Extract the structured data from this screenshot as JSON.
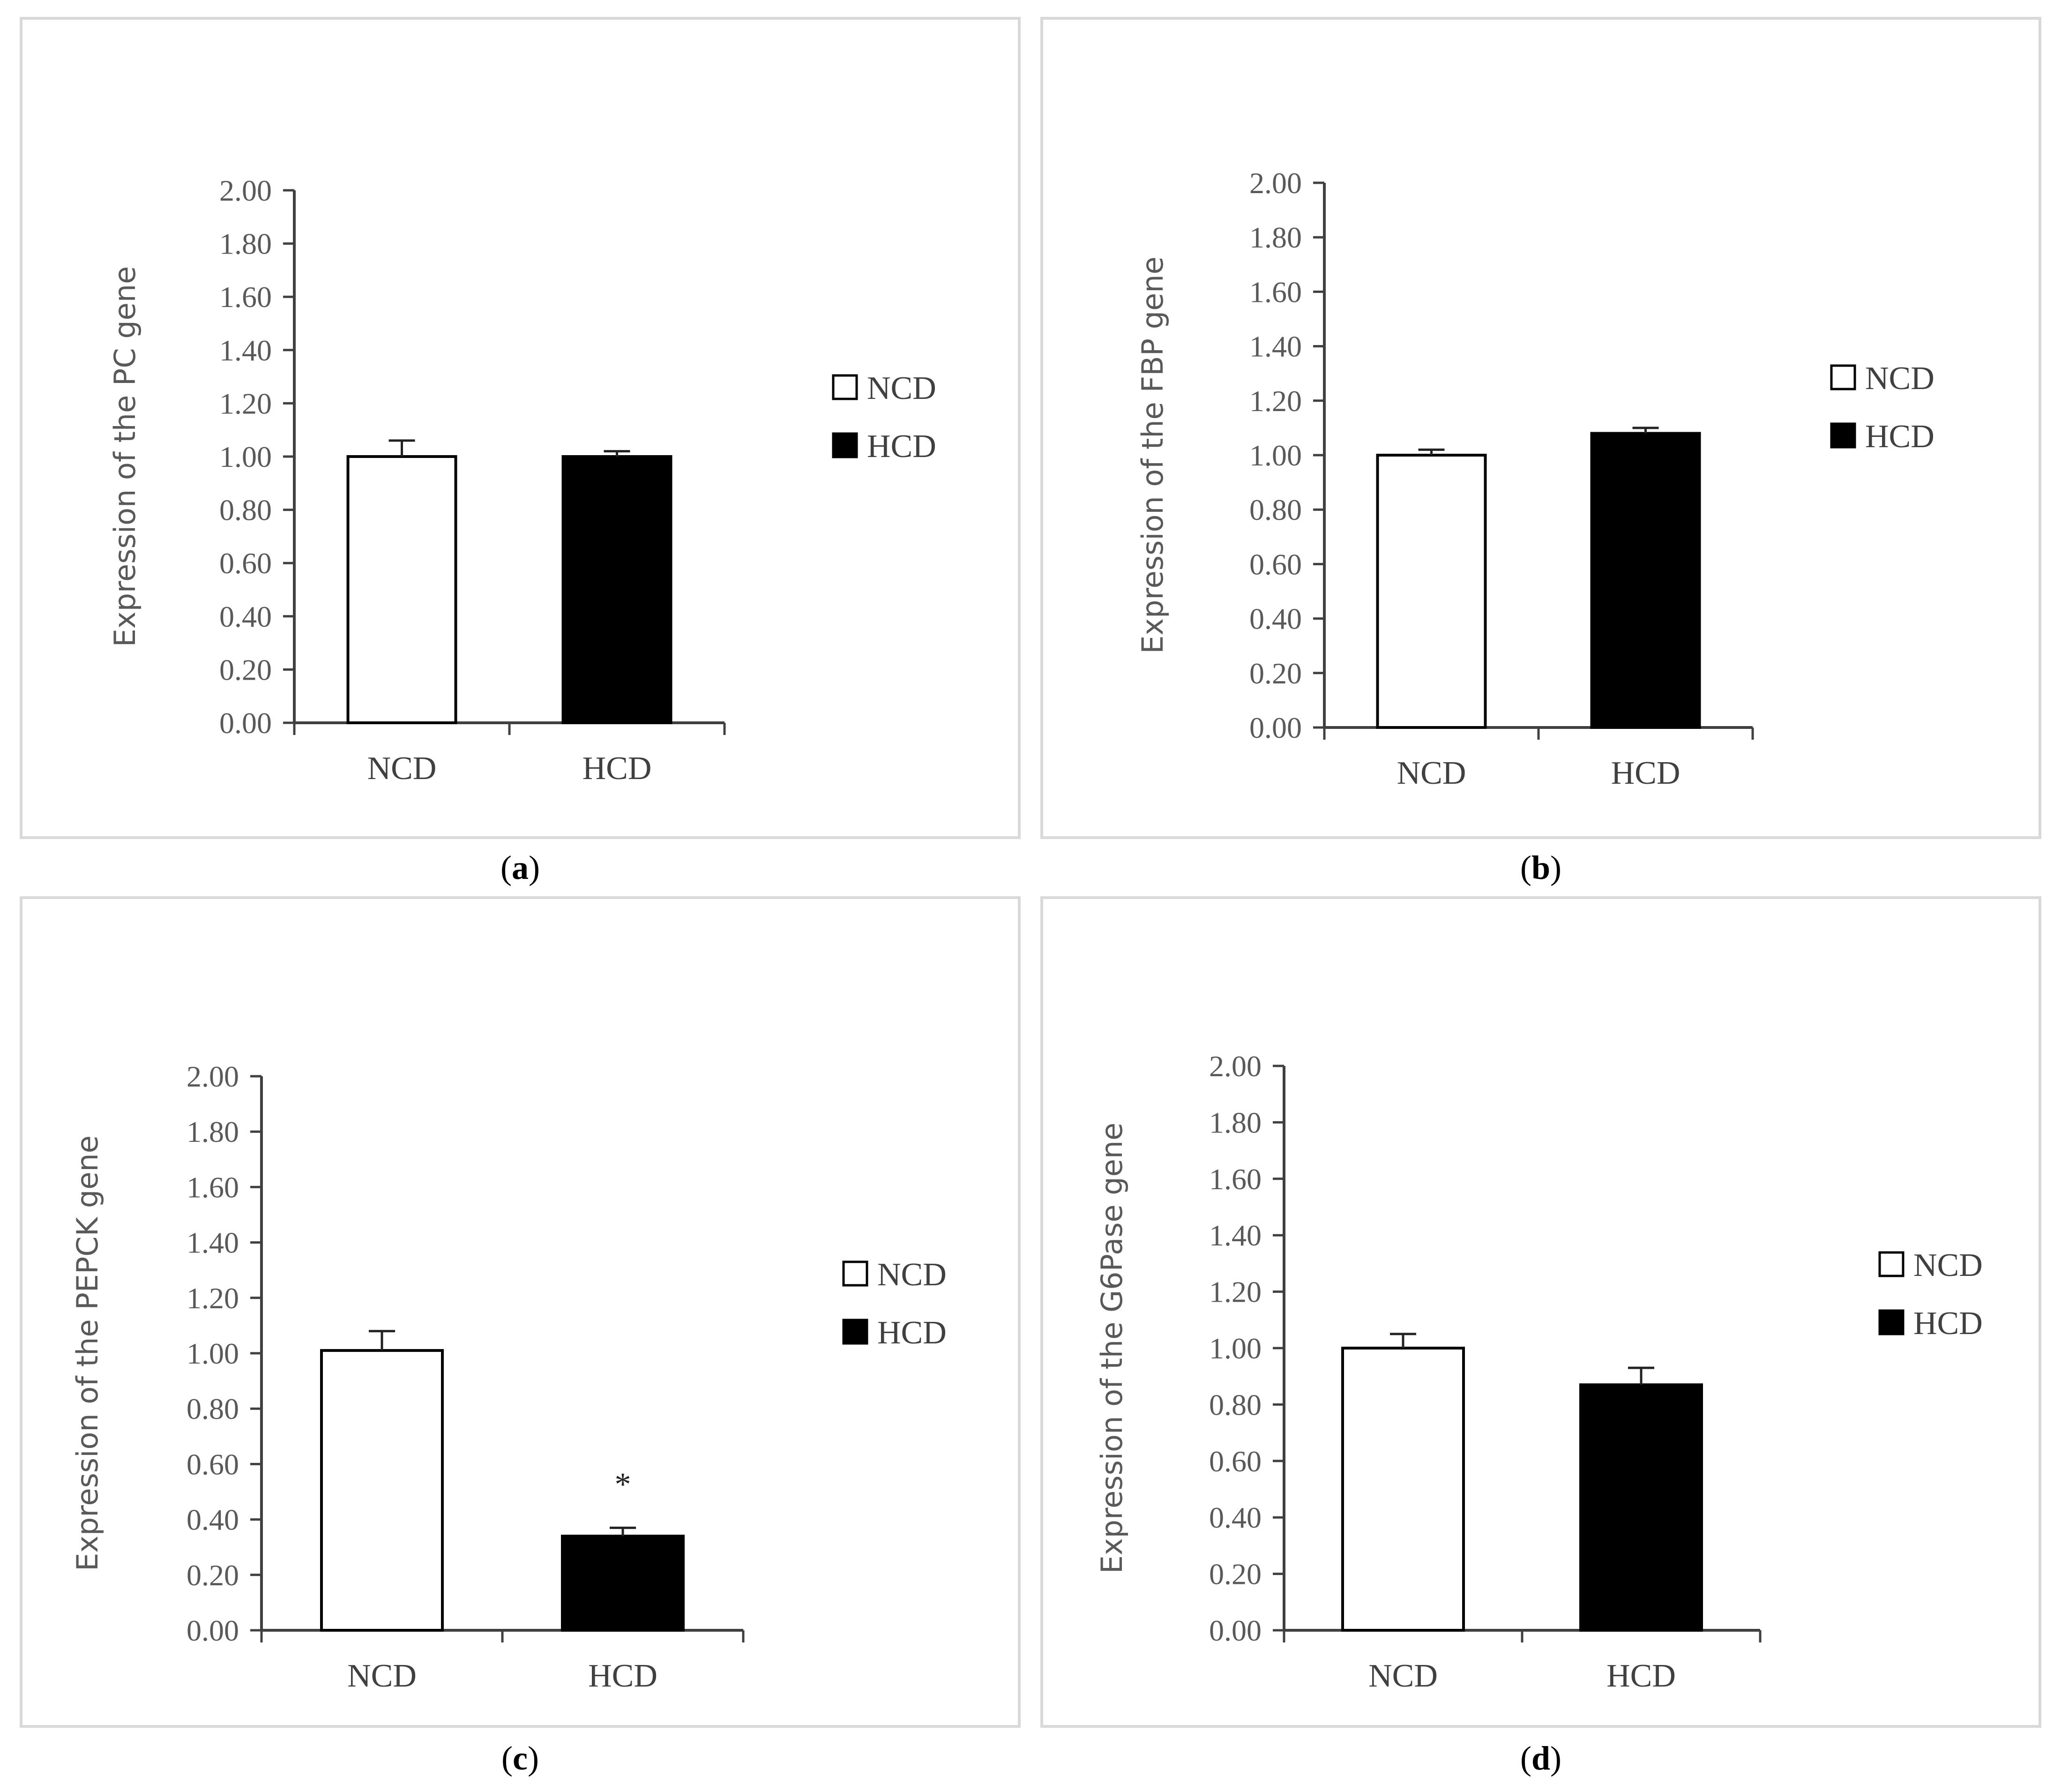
{
  "chart_data": [
    {
      "type": "bar",
      "panel_label": "a",
      "ylabel": "Expression of the PC gene",
      "categories": [
        "NCD",
        "HCD"
      ],
      "values": [
        1.0,
        1.0
      ],
      "errors": [
        0.06,
        0.02
      ],
      "annotations": [
        "",
        ""
      ],
      "ylim": [
        0,
        2.0
      ],
      "yticks": [
        "0.00",
        "0.20",
        "0.40",
        "0.60",
        "0.80",
        "1.00",
        "1.20",
        "1.40",
        "1.60",
        "1.80",
        "2.00"
      ],
      "legend": [
        "NCD",
        "HCD"
      ],
      "bar_colors": [
        "#ffffff",
        "#000000"
      ]
    },
    {
      "type": "bar",
      "panel_label": "b",
      "ylabel": "Expression of the FBP gene",
      "categories": [
        "NCD",
        "HCD"
      ],
      "values": [
        1.0,
        1.08
      ],
      "errors": [
        0.02,
        0.02
      ],
      "annotations": [
        "",
        ""
      ],
      "ylim": [
        0,
        2.0
      ],
      "yticks": [
        "0.00",
        "0.20",
        "0.40",
        "0.60",
        "0.80",
        "1.00",
        "1.20",
        "1.40",
        "1.60",
        "1.80",
        "2.00"
      ],
      "legend": [
        "NCD",
        "HCD"
      ],
      "bar_colors": [
        "#ffffff",
        "#000000"
      ]
    },
    {
      "type": "bar",
      "panel_label": "c",
      "ylabel": "Expression of the PEPCK gene",
      "categories": [
        "NCD",
        "HCD"
      ],
      "values": [
        1.01,
        0.34
      ],
      "errors": [
        0.07,
        0.03
      ],
      "annotations": [
        "",
        "*"
      ],
      "ylim": [
        0,
        2.0
      ],
      "yticks": [
        "0.00",
        "0.20",
        "0.40",
        "0.60",
        "0.80",
        "1.00",
        "1.20",
        "1.40",
        "1.60",
        "1.80",
        "2.00"
      ],
      "legend": [
        "NCD",
        "HCD"
      ],
      "bar_colors": [
        "#ffffff",
        "#000000"
      ]
    },
    {
      "type": "bar",
      "panel_label": "d",
      "ylabel": "Expression of the G6Pase gene",
      "categories": [
        "NCD",
        "HCD"
      ],
      "values": [
        1.0,
        0.87
      ],
      "errors": [
        0.05,
        0.06
      ],
      "annotations": [
        "",
        ""
      ],
      "ylim": [
        0,
        2.0
      ],
      "yticks": [
        "0.00",
        "0.20",
        "0.40",
        "0.60",
        "0.80",
        "1.00",
        "1.20",
        "1.40",
        "1.60",
        "1.80",
        "2.00"
      ],
      "legend": [
        "NCD",
        "HCD"
      ],
      "bar_colors": [
        "#ffffff",
        "#000000"
      ]
    }
  ]
}
